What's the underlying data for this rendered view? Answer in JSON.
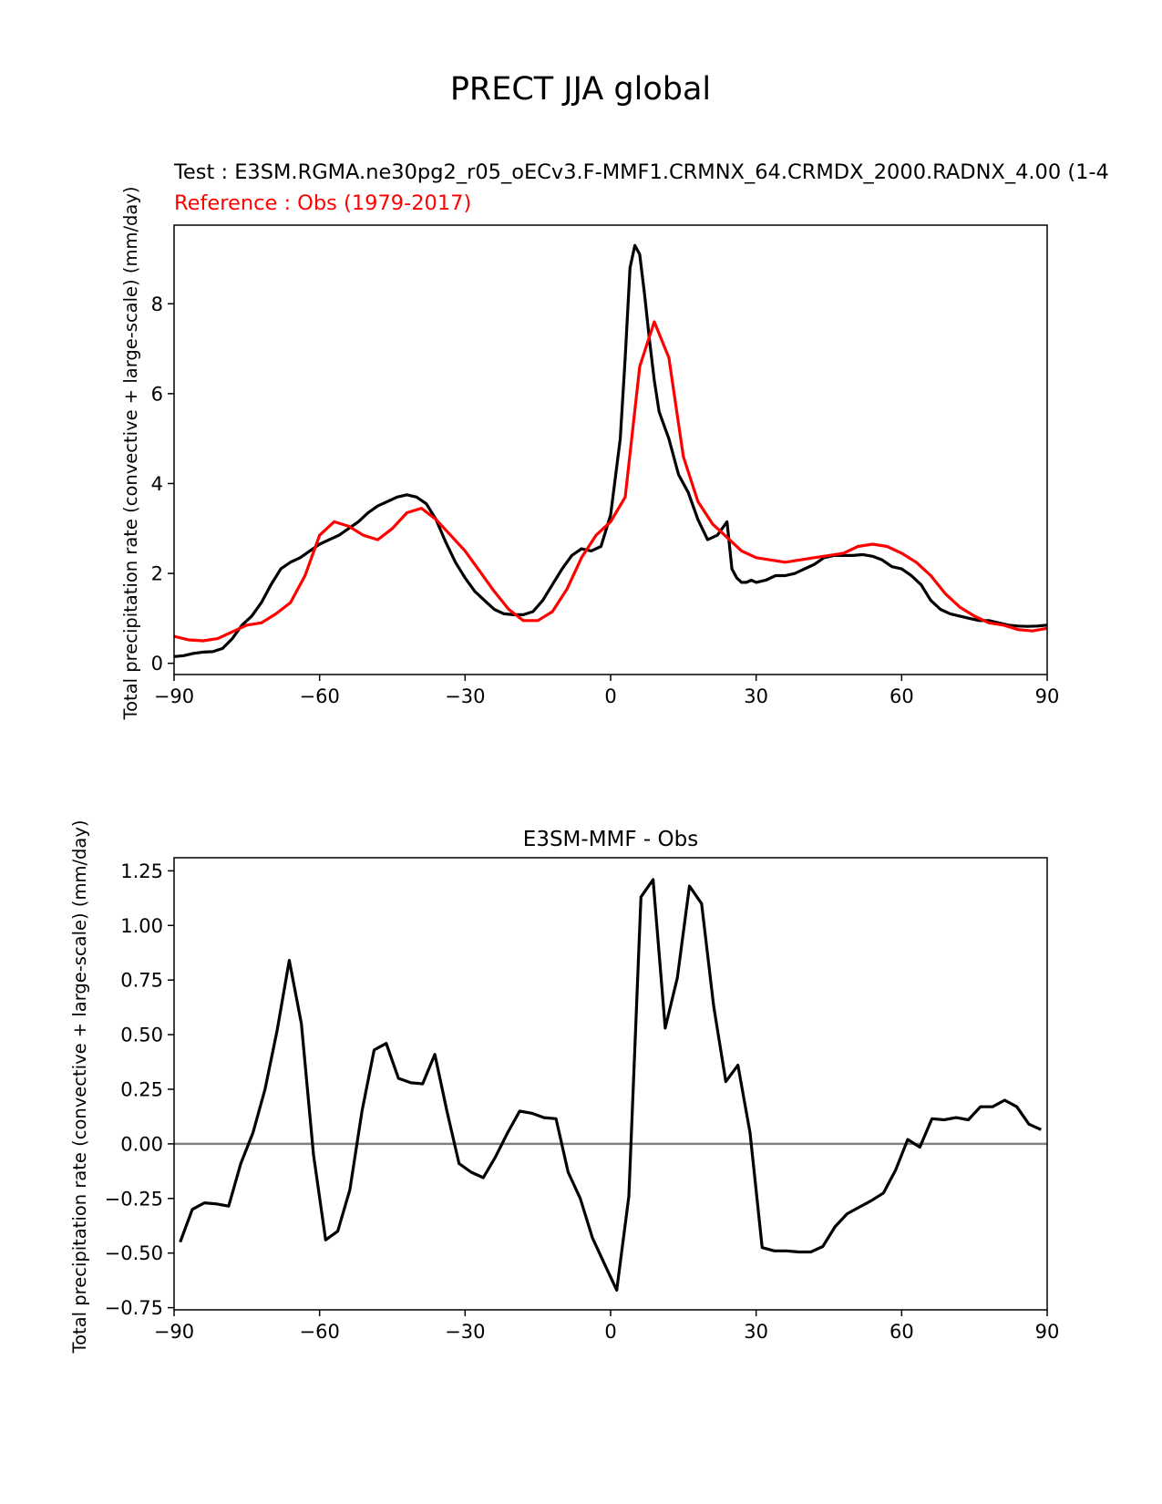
{
  "figure": {
    "title": "PRECT JJA global"
  },
  "chart_data": [
    {
      "type": "line",
      "test_label": "Test : E3SM.RGMA.ne30pg2_r05_oECv3.F-MMF1.CRMNX_64.CRMDX_2000.RADNX_4.00 (1-4",
      "reference_label": "Reference : Obs (1979-2017)",
      "xlabel": "",
      "ylabel": "Total precipitation rate (convective + large-scale) (mm/day)",
      "xlim": [
        -90,
        90
      ],
      "ylim": [
        -0.25,
        9.75
      ],
      "xticks": [
        -90,
        -60,
        -30,
        0,
        30,
        60,
        90
      ],
      "xtick_labels": [
        "−90",
        "−60",
        "−30",
        "0",
        "30",
        "60",
        "90"
      ],
      "yticks": [
        0,
        2,
        4,
        6,
        8
      ],
      "ytick_labels": [
        "0",
        "2",
        "4",
        "6",
        "8"
      ],
      "series": [
        {
          "name": "Test",
          "color": "#000000",
          "x": [
            -90,
            -88,
            -86,
            -84,
            -82,
            -80,
            -78,
            -76,
            -74,
            -72,
            -70,
            -68,
            -66,
            -64,
            -62,
            -60,
            -58,
            -56,
            -54,
            -52,
            -50,
            -48,
            -46,
            -44,
            -42,
            -40,
            -38,
            -36,
            -34,
            -32,
            -30,
            -28,
            -26,
            -24,
            -22,
            -20,
            -18,
            -16,
            -14,
            -12,
            -10,
            -8,
            -6,
            -4,
            -2,
            0,
            2,
            3,
            4,
            5,
            6,
            7,
            8,
            9,
            10,
            11,
            12,
            13,
            14,
            16,
            18,
            20,
            22,
            24,
            25,
            26,
            27,
            28,
            29,
            30,
            32,
            34,
            36,
            38,
            40,
            42,
            44,
            46,
            48,
            50,
            52,
            54,
            56,
            58,
            60,
            62,
            64,
            66,
            68,
            70,
            72,
            74,
            76,
            78,
            80,
            82,
            84,
            86,
            88,
            90
          ],
          "values": [
            0.15,
            0.17,
            0.22,
            0.25,
            0.26,
            0.33,
            0.55,
            0.85,
            1.05,
            1.35,
            1.75,
            2.1,
            2.25,
            2.35,
            2.5,
            2.65,
            2.75,
            2.85,
            3.0,
            3.15,
            3.35,
            3.5,
            3.6,
            3.7,
            3.75,
            3.7,
            3.55,
            3.2,
            2.7,
            2.25,
            1.9,
            1.6,
            1.4,
            1.2,
            1.1,
            1.08,
            1.08,
            1.15,
            1.4,
            1.75,
            2.1,
            2.4,
            2.55,
            2.5,
            2.6,
            3.3,
            5.0,
            6.8,
            8.8,
            9.3,
            9.1,
            8.2,
            7.2,
            6.3,
            5.6,
            5.3,
            5.0,
            4.6,
            4.2,
            3.8,
            3.2,
            2.75,
            2.85,
            3.15,
            2.1,
            1.9,
            1.8,
            1.8,
            1.85,
            1.8,
            1.85,
            1.95,
            1.95,
            2.0,
            2.1,
            2.2,
            2.35,
            2.4,
            2.4,
            2.4,
            2.42,
            2.38,
            2.3,
            2.15,
            2.1,
            1.95,
            1.75,
            1.4,
            1.2,
            1.1,
            1.05,
            1.0,
            0.95,
            0.95,
            0.9,
            0.85,
            0.83,
            0.82,
            0.83,
            0.85
          ]
        },
        {
          "name": "Reference",
          "color": "#ff0000",
          "x": [
            -90,
            -87,
            -84,
            -81,
            -78,
            -75,
            -72,
            -69,
            -66,
            -63,
            -60,
            -57,
            -54,
            -51,
            -48,
            -45,
            -42,
            -39,
            -36,
            -33,
            -30,
            -27,
            -24,
            -21,
            -18,
            -15,
            -12,
            -9,
            -6,
            -3,
            0,
            3,
            6,
            9,
            12,
            15,
            18,
            21,
            24,
            27,
            30,
            33,
            36,
            39,
            42,
            45,
            48,
            51,
            54,
            57,
            60,
            63,
            66,
            69,
            72,
            75,
            78,
            81,
            84,
            87,
            90
          ],
          "values": [
            0.6,
            0.52,
            0.5,
            0.55,
            0.7,
            0.85,
            0.9,
            1.1,
            1.35,
            1.95,
            2.85,
            3.15,
            3.05,
            2.85,
            2.75,
            3.0,
            3.35,
            3.45,
            3.2,
            2.85,
            2.5,
            2.05,
            1.6,
            1.2,
            0.95,
            0.95,
            1.15,
            1.65,
            2.35,
            2.85,
            3.15,
            3.7,
            6.6,
            7.6,
            6.8,
            4.6,
            3.6,
            3.1,
            2.8,
            2.5,
            2.35,
            2.3,
            2.25,
            2.3,
            2.35,
            2.4,
            2.45,
            2.6,
            2.65,
            2.6,
            2.45,
            2.25,
            1.95,
            1.55,
            1.25,
            1.05,
            0.9,
            0.85,
            0.75,
            0.72,
            0.78
          ]
        }
      ]
    },
    {
      "type": "line",
      "title": "E3SM-MMF - Obs",
      "xlabel": "",
      "ylabel": "Total precipitation rate (convective + large-scale) (mm/day)",
      "xlim": [
        -90,
        90
      ],
      "ylim": [
        -0.76,
        1.31
      ],
      "xticks": [
        -90,
        -60,
        -30,
        0,
        30,
        60,
        90
      ],
      "xtick_labels": [
        "−90",
        "−60",
        "−30",
        "0",
        "30",
        "60",
        "90"
      ],
      "yticks": [
        -0.75,
        -0.5,
        -0.25,
        0.0,
        0.25,
        0.5,
        0.75,
        1.0,
        1.25
      ],
      "ytick_labels": [
        "−0.75",
        "−0.50",
        "−0.25",
        "0.00",
        "0.25",
        "0.50",
        "0.75",
        "1.00",
        "1.25"
      ],
      "zero_line_color": "#808080",
      "series": [
        {
          "name": "E3SM-MMF - Obs",
          "color": "#000000",
          "x": [
            -88.75,
            -86.25,
            -83.75,
            -81.25,
            -78.75,
            -76.25,
            -73.75,
            -71.25,
            -68.75,
            -66.25,
            -63.75,
            -61.25,
            -58.75,
            -56.25,
            -53.75,
            -51.25,
            -48.75,
            -46.25,
            -43.75,
            -41.25,
            -38.75,
            -36.25,
            -33.75,
            -31.25,
            -28.75,
            -26.25,
            -23.75,
            -21.25,
            -18.75,
            -16.25,
            -13.75,
            -11.25,
            -8.75,
            -6.25,
            -3.75,
            -1.25,
            1.25,
            3.75,
            6.25,
            8.75,
            11.25,
            13.75,
            16.25,
            18.75,
            21.25,
            23.75,
            26.25,
            28.75,
            31.25,
            33.75,
            36.25,
            38.75,
            41.25,
            43.75,
            46.25,
            48.75,
            51.25,
            53.75,
            56.25,
            58.75,
            61.25,
            63.75,
            66.25,
            68.75,
            71.25,
            73.75,
            76.25,
            78.75,
            81.25,
            83.75,
            86.25,
            88.75
          ],
          "values": [
            -0.45,
            -0.3,
            -0.27,
            -0.275,
            -0.285,
            -0.09,
            0.05,
            0.25,
            0.52,
            0.84,
            0.55,
            -0.05,
            -0.44,
            -0.4,
            -0.21,
            0.15,
            0.43,
            0.46,
            0.3,
            0.28,
            0.275,
            0.41,
            0.15,
            -0.09,
            -0.13,
            -0.155,
            -0.06,
            0.05,
            0.15,
            0.14,
            0.12,
            0.115,
            -0.13,
            -0.25,
            -0.43,
            -0.55,
            -0.67,
            -0.24,
            1.13,
            1.21,
            0.53,
            0.76,
            1.18,
            1.1,
            0.63,
            0.285,
            0.36,
            0.05,
            -0.475,
            -0.49,
            -0.49,
            -0.495,
            -0.495,
            -0.47,
            -0.38,
            -0.32,
            -0.29,
            -0.26,
            -0.225,
            -0.12,
            0.02,
            -0.015,
            0.115,
            0.11,
            0.12,
            0.11,
            0.17,
            0.17,
            0.2,
            0.17,
            0.09,
            0.065
          ]
        }
      ]
    }
  ]
}
